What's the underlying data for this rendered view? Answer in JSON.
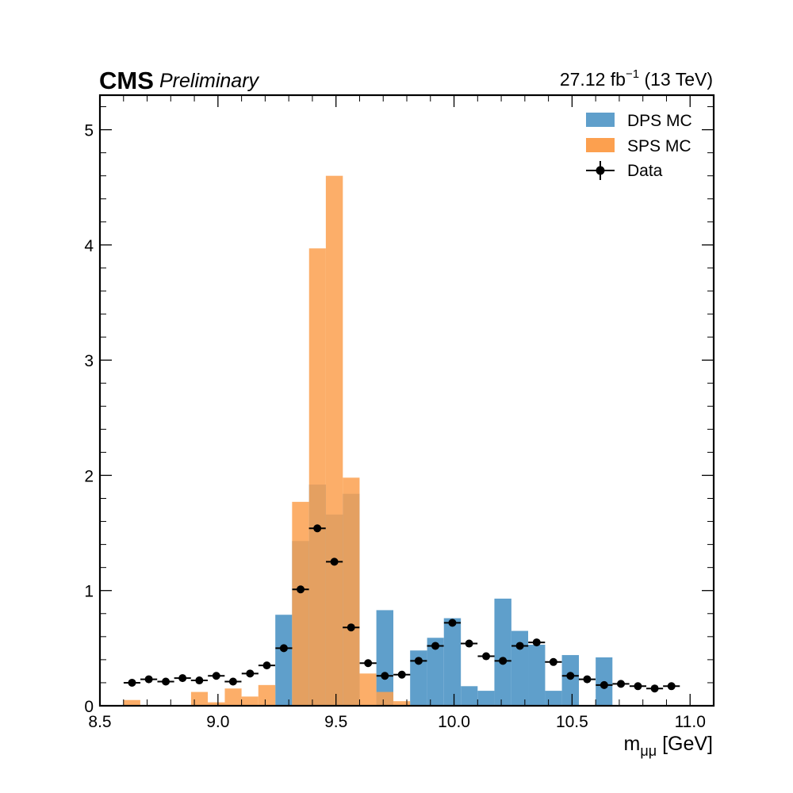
{
  "header": {
    "experiment": "CMS",
    "status": "Preliminary",
    "lumi_value": "27.12 fb",
    "lumi_exponent": "−1",
    "energy": " (13 TeV)"
  },
  "axes": {
    "xlabel_main": "m",
    "xlabel_sub": "μμ",
    "xlabel_unit": " [GeV]"
  },
  "chart_data": {
    "type": "bar",
    "xlim": [
      8.5,
      11.1
    ],
    "ylim": [
      0,
      5.3
    ],
    "x_ticks": [
      8.5,
      9.0,
      9.5,
      10.0,
      10.5,
      11.0
    ],
    "x_tick_labels": [
      "8.5",
      "9.0",
      "9.5",
      "10.0",
      "10.5",
      "11.0"
    ],
    "y_ticks": [
      0,
      1,
      2,
      3,
      4,
      5
    ],
    "y_tick_labels": [
      "0",
      "1",
      "2",
      "3",
      "4",
      "5"
    ],
    "bin_edges": [
      8.6,
      8.671,
      8.743,
      8.814,
      8.886,
      8.957,
      9.029,
      9.1,
      9.171,
      9.243,
      9.314,
      9.386,
      9.457,
      9.529,
      9.6,
      9.671,
      9.743,
      9.814,
      9.886,
      9.957,
      10.029,
      10.1,
      10.171,
      10.243,
      10.314,
      10.386,
      10.457,
      10.529,
      10.6,
      10.671,
      10.743,
      10.814,
      10.886,
      10.957
    ],
    "series": [
      {
        "name": "DPS MC",
        "color": "#5f9fcb",
        "kind": "histogram",
        "values": [
          0,
          0,
          0,
          0,
          0,
          0,
          0,
          0,
          0,
          0.79,
          1.43,
          1.92,
          1.66,
          1.84,
          0,
          0.83,
          0,
          0.48,
          0.59,
          0.76,
          0.17,
          0.13,
          0.93,
          0.65,
          0.53,
          0.13,
          0.44,
          0,
          0.42,
          0,
          0,
          0,
          0
        ]
      },
      {
        "name": "SPS MC",
        "color": "#fca04f",
        "kind": "histogram",
        "values": [
          0.05,
          0,
          0,
          0,
          0.12,
          0.03,
          0.15,
          0.08,
          0.18,
          0,
          1.77,
          3.97,
          4.6,
          1.98,
          0.28,
          0.12,
          0.04,
          0,
          0,
          0,
          0,
          0,
          0,
          0,
          0,
          0,
          0,
          0,
          0,
          0,
          0,
          0,
          0
        ]
      },
      {
        "name": "Data",
        "color": "#000000",
        "kind": "points",
        "x": [
          8.636,
          8.707,
          8.779,
          8.85,
          8.921,
          8.993,
          9.064,
          9.136,
          9.207,
          9.279,
          9.35,
          9.421,
          9.493,
          9.564,
          9.636,
          9.707,
          9.779,
          9.85,
          9.921,
          9.993,
          10.064,
          10.136,
          10.207,
          10.279,
          10.35,
          10.421,
          10.493,
          10.564,
          10.636,
          10.707,
          10.779,
          10.85,
          10.921
        ],
        "y": [
          0.2,
          0.23,
          0.21,
          0.24,
          0.22,
          0.26,
          0.21,
          0.28,
          0.35,
          0.5,
          1.01,
          1.54,
          1.25,
          0.68,
          0.37,
          0.26,
          0.27,
          0.39,
          0.52,
          0.72,
          0.54,
          0.43,
          0.39,
          0.52,
          0.55,
          0.38,
          0.26,
          0.23,
          0.18,
          0.19,
          0.17,
          0.15,
          0.17
        ]
      }
    ],
    "legend": {
      "position": "top-right",
      "entries": [
        "DPS MC",
        "SPS MC",
        "Data"
      ]
    },
    "grid": false
  }
}
